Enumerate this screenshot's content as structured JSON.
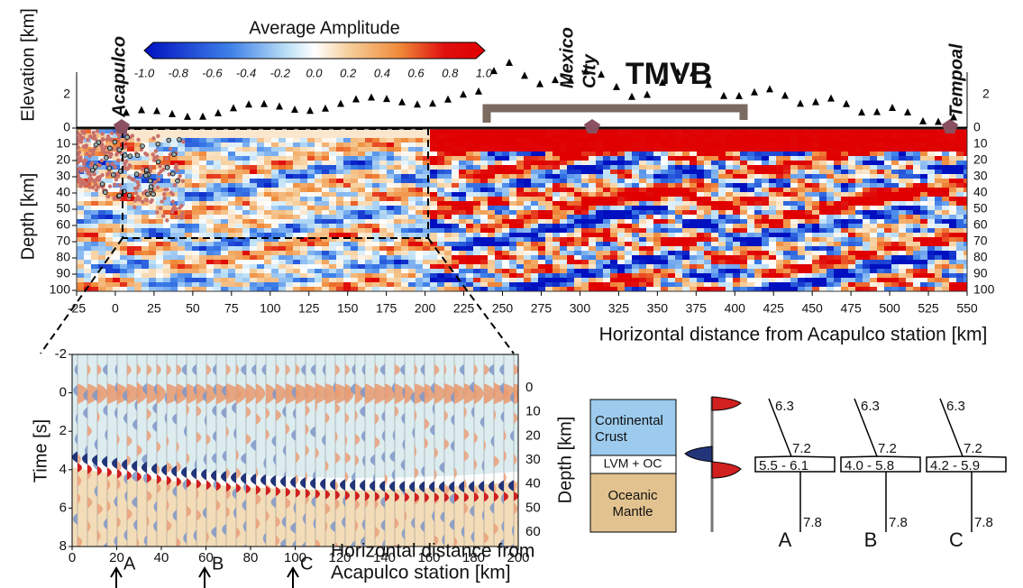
{
  "colorbar": {
    "title": "Average  Amplitude",
    "ticks": [
      "-1.0",
      "-0.8",
      "-0.6",
      "-0.4",
      "-0.2",
      "0.0",
      "0.2",
      "0.4",
      "0.6",
      "0.8",
      "1.0"
    ]
  },
  "profile": {
    "elevation_label": "Elevation [km]",
    "depth_label": "Depth [km]",
    "x_label": "Horizontal distance from Acapulco station [km]",
    "xticks": [
      -25,
      0,
      25,
      50,
      75,
      100,
      125,
      150,
      175,
      200,
      225,
      250,
      275,
      300,
      325,
      350,
      375,
      400,
      425,
      450,
      475,
      500,
      525,
      550
    ],
    "depth_ticks": [
      0,
      10,
      20,
      30,
      40,
      50,
      60,
      70,
      80,
      90,
      100
    ],
    "elevation_ticks": [
      0,
      2
    ],
    "places": {
      "acapulco": "Acapulco",
      "mexico": "Mexico",
      "city": "City",
      "tempoal": "Tempoal",
      "tmvb": "TMVB"
    }
  },
  "inset": {
    "y_label": "Time [s]",
    "yticks": [
      -2,
      0,
      2,
      4,
      6,
      8
    ],
    "depth_ticks": [
      0,
      10,
      20,
      30,
      40,
      50,
      60
    ],
    "xticks": [
      0,
      20,
      40,
      60,
      80,
      100,
      120,
      140,
      160,
      180,
      200
    ],
    "x_label_line1": "Horizontal distance from",
    "x_label_line2": "Acapulco station [km]",
    "arrows": [
      "A",
      "B",
      "C"
    ]
  },
  "legend": {
    "depth_label": "Depth [km]",
    "crust_line1": "Continental",
    "crust_line2": "Crust",
    "lvm": "LVM + OC",
    "mantle_line1": "Oceanic",
    "mantle_line2": "Mantle"
  },
  "velocity_profiles": [
    {
      "label": "A",
      "top": "6.3",
      "upper": "7.2",
      "lvm": "5.5 - 6.1",
      "mantle": "7.8"
    },
    {
      "label": "B",
      "top": "6.3",
      "upper": "7.2",
      "lvm": "4.0 - 5.8",
      "mantle": "7.8"
    },
    {
      "label": "C",
      "top": "6.3",
      "upper": "7.2",
      "lvm": "4.2 - 5.9",
      "mantle": "7.8"
    }
  ]
}
